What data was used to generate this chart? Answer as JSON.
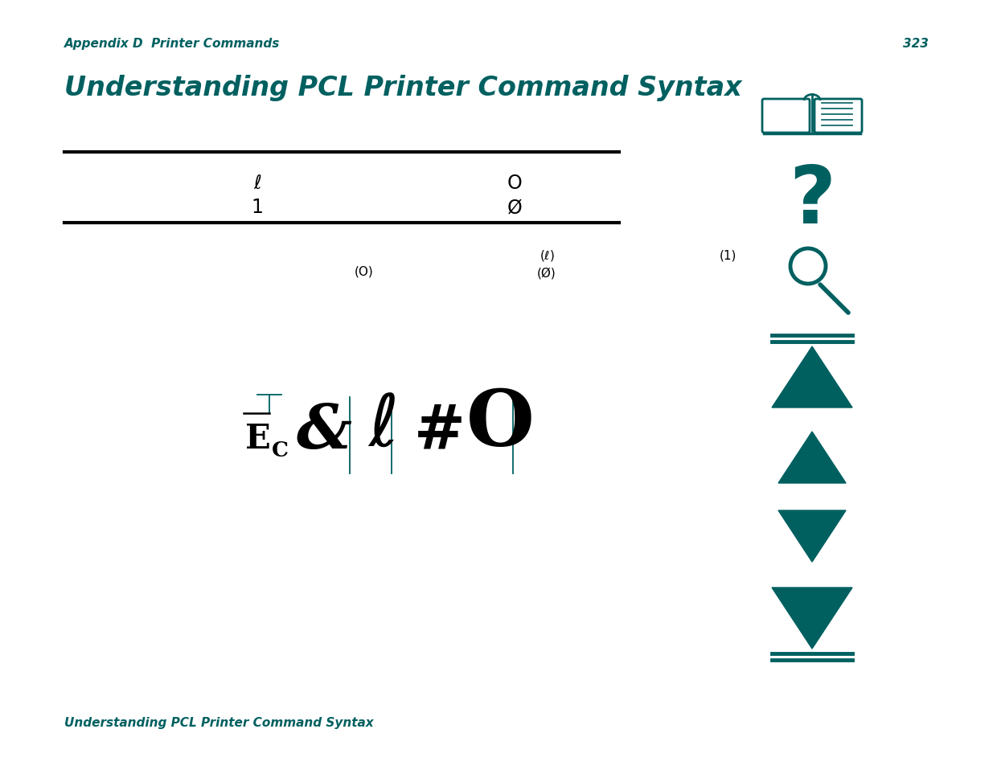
{
  "bg_color": "#ffffff",
  "teal": "#006060",
  "black": "#000000",
  "header_text": "Appendix D  Printer Commands",
  "page_num": "323",
  "title": "Understanding PCL Printer Command Syntax",
  "footer_text": "Understanding PCL Printer Command Syntax",
  "fig_w": 12.35,
  "fig_h": 9.54,
  "dpi": 100
}
